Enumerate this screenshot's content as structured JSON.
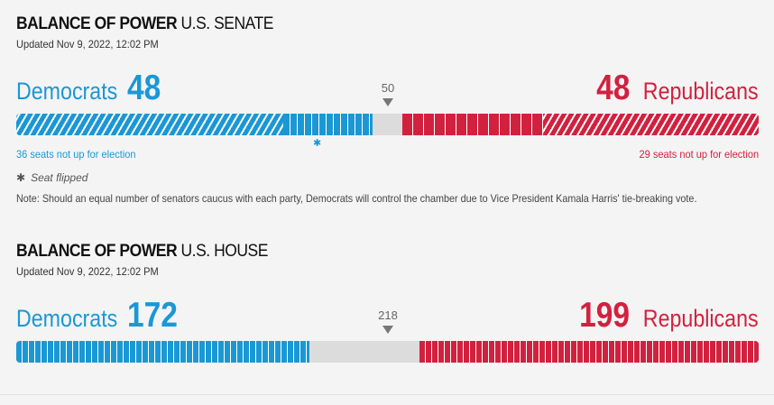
{
  "senate": {
    "title_bold": "BALANCE OF POWER",
    "title_rest": "U.S. SENATE",
    "updated": "Updated Nov 9, 2022, 12:02 PM",
    "dem_label": "Democrats",
    "dem_seats": "48",
    "rep_label": "Republicans",
    "rep_seats": "48",
    "majority": "50",
    "dem_not_up": "36 seats not up for election",
    "rep_not_up": "29 seats not up for election",
    "flip_marker": "✱",
    "legend_star": "✱",
    "legend_text": "Seat flipped",
    "note": "Note: Should an equal number of senators caucus with each party, Democrats will control the chamber due to Vice President Kamala Harris' tie-breaking vote.",
    "bar": {
      "total": 100,
      "dem_not_up": 36,
      "dem_won": 12,
      "undecided": 4,
      "rep_won": 19,
      "rep_not_up": 29
    }
  },
  "house": {
    "title_bold": "BALANCE OF POWER",
    "title_rest": "U.S. HOUSE",
    "updated": "Updated Nov 9, 2022, 12:02 PM",
    "dem_label": "Democrats",
    "dem_seats": "172",
    "rep_label": "Republicans",
    "rep_seats": "199",
    "majority": "218",
    "bar": {
      "total": 435,
      "dem": 172,
      "undecided": 64,
      "rep": 199
    }
  },
  "colors": {
    "democrat": "#1a98d5",
    "republican": "#d2213f",
    "undecided": "#dcdcdc"
  }
}
